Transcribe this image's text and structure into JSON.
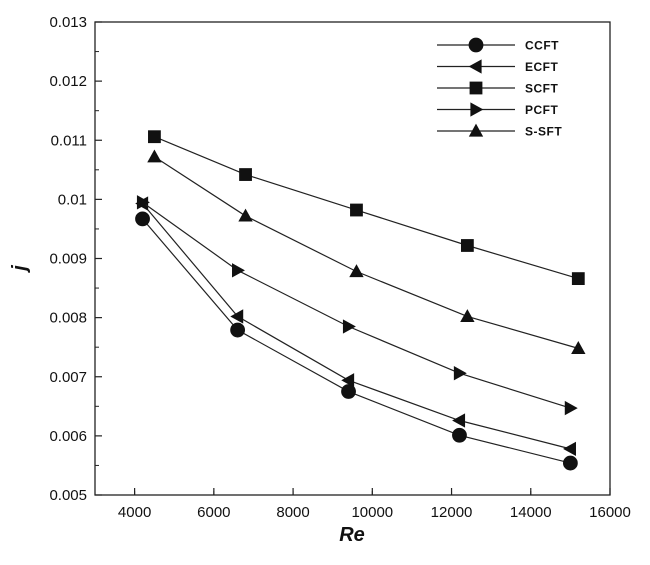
{
  "chart_data": {
    "type": "line",
    "xlabel": "Re",
    "ylabel": "j",
    "xlim": [
      3000,
      16000
    ],
    "ylim": [
      0.005,
      0.013
    ],
    "x_ticks": [
      "4000",
      "6000",
      "8000",
      "10000",
      "12000",
      "14000",
      "16000"
    ],
    "y_ticks": [
      "0.005",
      "0.006",
      "0.007",
      "0.008",
      "0.009",
      "0.01",
      "0.011",
      "0.012",
      "0.013"
    ],
    "grid": false,
    "legend_position": "top-right",
    "series": [
      {
        "name": "CCFT",
        "marker": "circle",
        "x": [
          4200,
          6600,
          9400,
          12200,
          15000
        ],
        "y": [
          0.00967,
          0.00779,
          0.00675,
          0.00601,
          0.00554
        ]
      },
      {
        "name": "ECFT",
        "marker": "triangle-left",
        "x": [
          4200,
          6600,
          9400,
          12200,
          15000
        ],
        "y": [
          0.00993,
          0.00802,
          0.00694,
          0.00626,
          0.00578
        ]
      },
      {
        "name": "SCFT",
        "marker": "square",
        "x": [
          4500,
          6800,
          9600,
          12400,
          15200
        ],
        "y": [
          0.01106,
          0.01042,
          0.00982,
          0.00922,
          0.00866
        ]
      },
      {
        "name": "PCFT",
        "marker": "triangle-right",
        "x": [
          4200,
          6600,
          9400,
          12200,
          15000
        ],
        "y": [
          0.00995,
          0.0088,
          0.00785,
          0.00706,
          0.00647
        ]
      },
      {
        "name": "S-SFT",
        "marker": "triangle-up",
        "x": [
          4500,
          6800,
          9600,
          12400,
          15200
        ],
        "y": [
          0.01072,
          0.00972,
          0.00878,
          0.00802,
          0.00748
        ]
      }
    ]
  }
}
